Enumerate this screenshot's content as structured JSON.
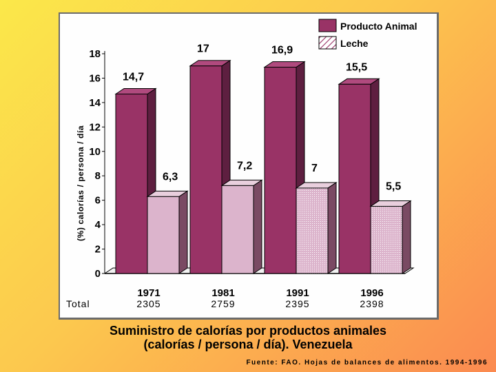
{
  "chart_data": {
    "type": "bar",
    "title_line1": "Suministro de calorías por productos animales",
    "title_line2": "(calorías / persona / día). Venezuela",
    "ylabel": "(%) calorías / persona / día",
    "xlabel": "",
    "categories": [
      "1971",
      "1981",
      "1991",
      "1996"
    ],
    "ylim": [
      0,
      18
    ],
    "yticks": [
      "0",
      "2",
      "4",
      "6",
      "8",
      "10",
      "12",
      "14",
      "16",
      "18"
    ],
    "series": [
      {
        "name": "Producto Animal",
        "values": [
          14.7,
          17,
          16.9,
          15.5
        ],
        "labels": [
          "14,7",
          "17",
          "16,9",
          "15,5"
        ]
      },
      {
        "name": "Leche",
        "values": [
          6.3,
          7.2,
          7,
          5.5
        ],
        "labels": [
          "6,3",
          "7,2",
          "7",
          "5,5"
        ]
      }
    ],
    "totals_label": "Total",
    "totals": [
      "2305",
      "2759",
      "2395",
      "2398"
    ],
    "legend_position": "top-right",
    "grid": false
  },
  "source": "Fuente: FAO. Hojas de balances de alimentos. 1994-1996",
  "colors": {
    "animal": "#993366",
    "animal_dark": "#5e1f40",
    "leche": "#dcb4cc",
    "leche_dark": "#7a4a63",
    "leche_hatch": "#ffffff"
  }
}
